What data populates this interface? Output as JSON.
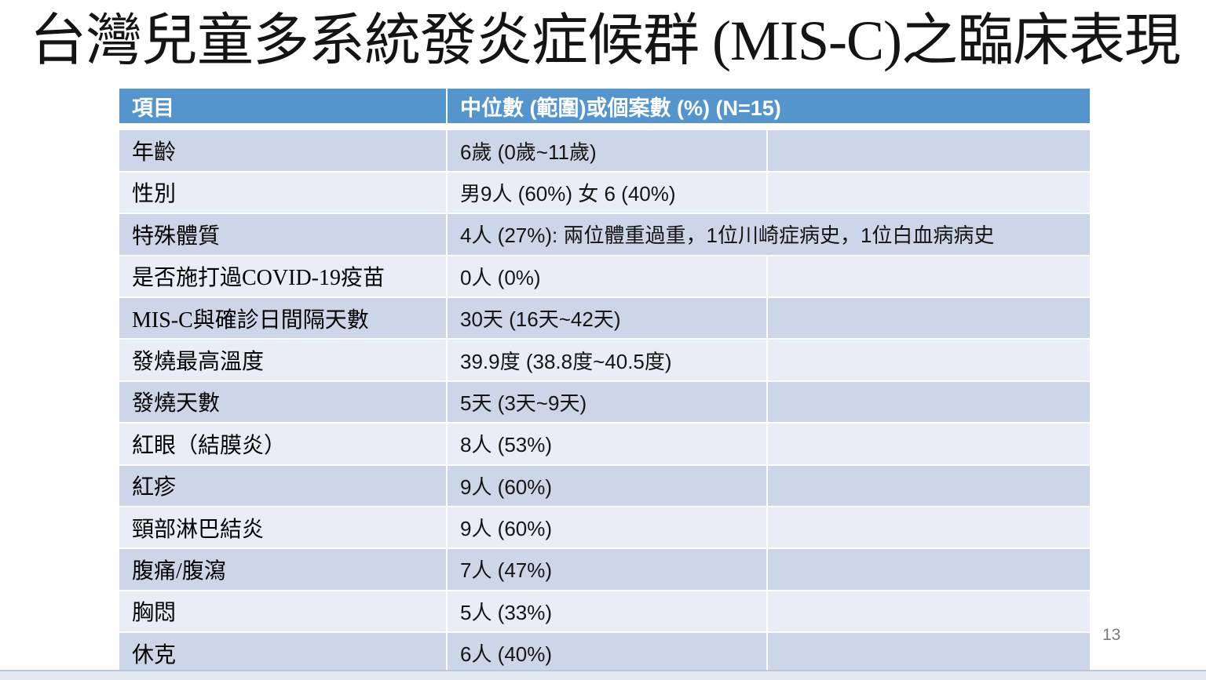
{
  "slide": {
    "title": "台灣兒童多系統發炎症候群 (MIS-C)之臨床表現",
    "page_number": "13"
  },
  "table": {
    "headers": {
      "item": "項目",
      "value": "中位數 (範圍)或個案數 (%) (N=15)"
    },
    "rows": [
      {
        "label": "年齡",
        "value": "6歲 (0歲~11歲)"
      },
      {
        "label": "性別",
        "value": "男9人 (60%) 女 6 (40%)"
      },
      {
        "label": "特殊體質",
        "value": "4人 (27%): 兩位體重過重，1位川崎症病史，1位白血病病史",
        "merged": true
      },
      {
        "label": "是否施打過COVID-19疫苗",
        "value": "0人 (0%)"
      },
      {
        "label": "MIS-C與確診日間隔天數",
        "value": "30天 (16天~42天)"
      },
      {
        "label": "發燒最高溫度",
        "value": "39.9度 (38.8度~40.5度)"
      },
      {
        "label": "發燒天數",
        "value": "5天 (3天~9天)"
      },
      {
        "label": "紅眼（結膜炎）",
        "value": "8人 (53%)"
      },
      {
        "label": "紅疹",
        "value": "9人 (60%)"
      },
      {
        "label": "頸部淋巴結炎",
        "value": "9人 (60%)"
      },
      {
        "label": "腹痛/腹瀉",
        "value": "7人 (47%)"
      },
      {
        "label": "胸悶",
        "value": "5人 (33%)"
      },
      {
        "label": "休克",
        "value": "6人 (40%)"
      }
    ]
  },
  "colors": {
    "header_bg": "#5595cd",
    "band_dark": "#ccd6e8",
    "band_light": "#e9eef6",
    "title_text": "#141414"
  }
}
